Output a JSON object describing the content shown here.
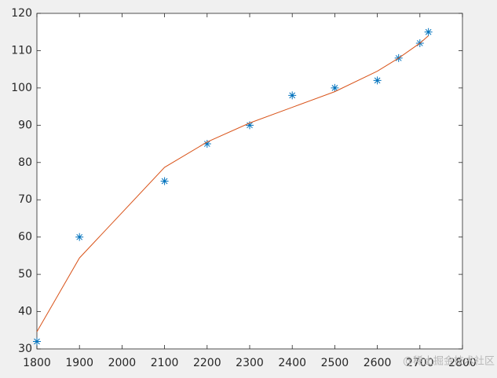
{
  "chart_data": {
    "type": "line",
    "series": [
      {
        "mode": "markers",
        "marker": "asterisk",
        "color": "#0072bd",
        "x": [
          1800,
          1900,
          2100,
          2200,
          2300,
          2400,
          2500,
          2600,
          2650,
          2700,
          2720
        ],
        "values": [
          32,
          60,
          75,
          85,
          90,
          98,
          100,
          102,
          108,
          112,
          115
        ]
      },
      {
        "mode": "line",
        "color": "#d95319",
        "x": [
          1800,
          1900,
          2100,
          2200,
          2300,
          2400,
          2500,
          2600,
          2650,
          2700,
          2720
        ],
        "values": [
          34.6,
          54.4,
          78.7,
          85.5,
          90.6,
          94.8,
          99,
          104.5,
          108,
          112,
          114
        ]
      }
    ],
    "xlim": [
      1800,
      2800
    ],
    "xticks": [
      1800,
      1900,
      2000,
      2100,
      2200,
      2300,
      2400,
      2500,
      2600,
      2700,
      2800
    ],
    "ylim": [
      30,
      120
    ],
    "yticks": [
      30,
      40,
      50,
      60,
      70,
      80,
      90,
      100,
      110,
      120
    ],
    "grid": false,
    "watermark": "@稀土掘金技术社区"
  }
}
